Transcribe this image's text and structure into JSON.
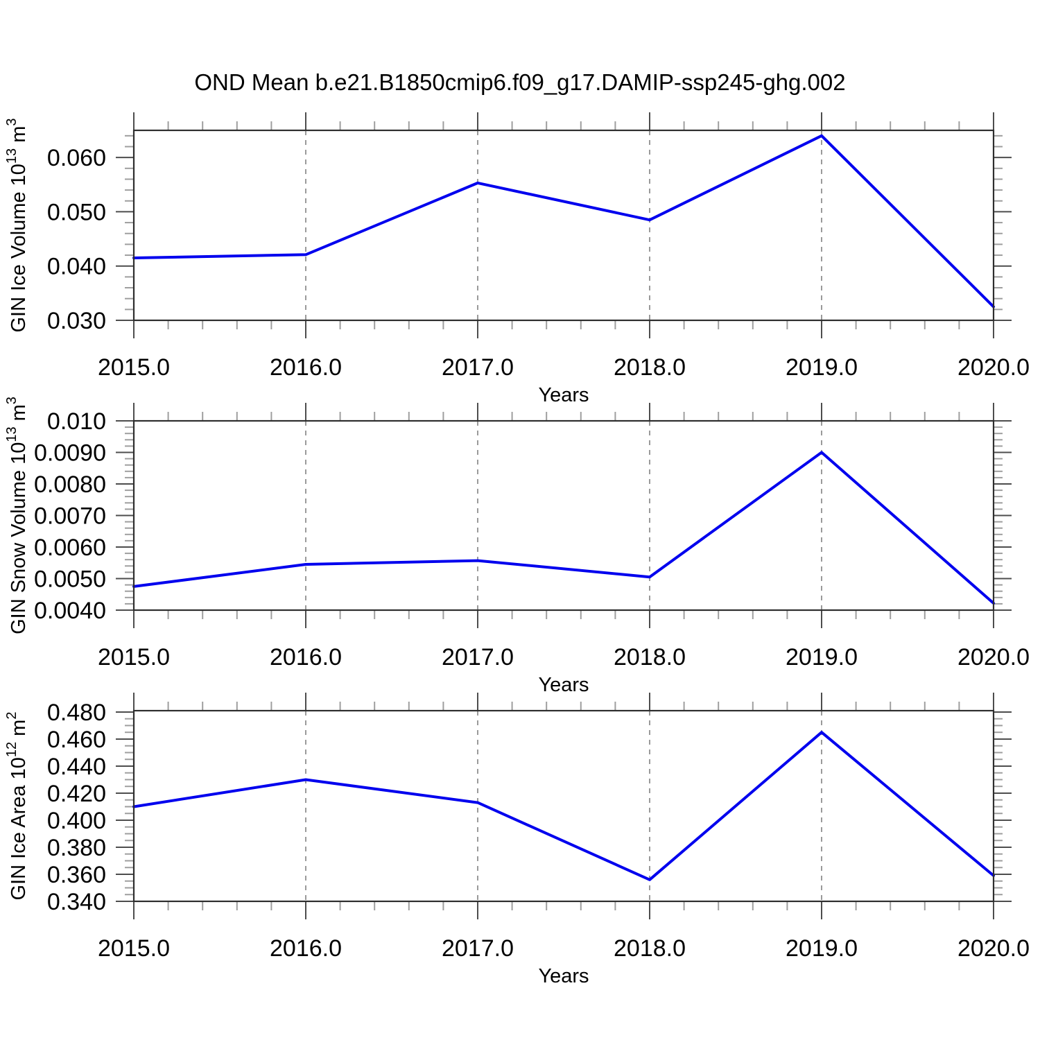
{
  "title": "OND Mean b.e21.B1850cmip6.f09_g17.DAMIP-ssp245-ghg.002",
  "colors": {
    "line": "#0000ee",
    "frame": "#2e2e2e",
    "major_tick": "#4d4d4d",
    "minor_tick": "#9e9e9e",
    "grid": "#9a9a9a",
    "text": "#000000",
    "background": "#ffffff"
  },
  "chart_data": [
    {
      "type": "line",
      "panel": "ice-volume",
      "x": [
        2015,
        2016,
        2017,
        2018,
        2019,
        2020
      ],
      "values": [
        0.0415,
        0.0421,
        0.0553,
        0.0485,
        0.064,
        0.0325
      ],
      "xlabel": "Years",
      "ylabel": "GIN Ice Volume 10^13 m^3",
      "ylabel_parts": [
        {
          "text": "GIN Ice Volume 10"
        },
        {
          "text": "13",
          "sup": true
        },
        {
          "text": " m"
        },
        {
          "text": "3",
          "sup": true
        }
      ],
      "xlim": [
        2015,
        2020
      ],
      "ylim": [
        0.03,
        0.065
      ],
      "yticks": [
        {
          "v": 0.06,
          "label": "0.060"
        },
        {
          "v": 0.05,
          "label": "0.050"
        },
        {
          "v": 0.04,
          "label": "0.040"
        },
        {
          "v": 0.03,
          "label": "0.030"
        }
      ],
      "y_minor_step": 0.002,
      "xticks": [
        {
          "v": 2015,
          "label": "2015.0"
        },
        {
          "v": 2016,
          "label": "2016.0"
        },
        {
          "v": 2017,
          "label": "2017.0"
        },
        {
          "v": 2018,
          "label": "2018.0"
        },
        {
          "v": 2019,
          "label": "2019.0"
        },
        {
          "v": 2020,
          "label": "2020.0"
        }
      ],
      "x_minor_step": 0.2,
      "grid_x": [
        2016,
        2017,
        2018,
        2019
      ]
    },
    {
      "type": "line",
      "panel": "snow-volume",
      "x": [
        2015,
        2016,
        2017,
        2018,
        2019,
        2020
      ],
      "values": [
        0.00475,
        0.00545,
        0.00557,
        0.00505,
        0.009,
        0.00422
      ],
      "xlabel": "Years",
      "ylabel": "GIN Snow Volume 10^13 m^3",
      "ylabel_parts": [
        {
          "text": "GIN Snow Volume 10"
        },
        {
          "text": "13",
          "sup": true
        },
        {
          "text": " m"
        },
        {
          "text": "3",
          "sup": true
        }
      ],
      "xlim": [
        2015,
        2020
      ],
      "ylim": [
        0.004,
        0.01
      ],
      "yticks": [
        {
          "v": 0.01,
          "label": "0.010"
        },
        {
          "v": 0.009,
          "label": "0.0090"
        },
        {
          "v": 0.008,
          "label": "0.0080"
        },
        {
          "v": 0.007,
          "label": "0.0070"
        },
        {
          "v": 0.006,
          "label": "0.0060"
        },
        {
          "v": 0.005,
          "label": "0.0050"
        },
        {
          "v": 0.004,
          "label": "0.0040"
        }
      ],
      "y_minor_step": 0.0002,
      "xticks": [
        {
          "v": 2015,
          "label": "2015.0"
        },
        {
          "v": 2016,
          "label": "2016.0"
        },
        {
          "v": 2017,
          "label": "2017.0"
        },
        {
          "v": 2018,
          "label": "2018.0"
        },
        {
          "v": 2019,
          "label": "2019.0"
        },
        {
          "v": 2020,
          "label": "2020.0"
        }
      ],
      "x_minor_step": 0.2,
      "grid_x": [
        2016,
        2017,
        2018,
        2019
      ]
    },
    {
      "type": "line",
      "panel": "ice-area",
      "x": [
        2015,
        2016,
        2017,
        2018,
        2019,
        2020
      ],
      "values": [
        0.41,
        0.43,
        0.413,
        0.356,
        0.465,
        0.359
      ],
      "xlabel": "Years",
      "ylabel": "GIN Ice Area 10^12 m^2",
      "ylabel_parts": [
        {
          "text": "GIN Ice Area 10"
        },
        {
          "text": "12",
          "sup": true
        },
        {
          "text": " m"
        },
        {
          "text": "2",
          "sup": true
        }
      ],
      "xlim": [
        2015,
        2020
      ],
      "ylim": [
        0.34,
        0.481
      ],
      "yticks": [
        {
          "v": 0.48,
          "label": "0.480"
        },
        {
          "v": 0.46,
          "label": "0.460"
        },
        {
          "v": 0.44,
          "label": "0.440"
        },
        {
          "v": 0.42,
          "label": "0.420"
        },
        {
          "v": 0.4,
          "label": "0.400"
        },
        {
          "v": 0.38,
          "label": "0.380"
        },
        {
          "v": 0.36,
          "label": "0.360"
        },
        {
          "v": 0.34,
          "label": "0.340"
        }
      ],
      "y_minor_step": 0.005,
      "xticks": [
        {
          "v": 2015,
          "label": "2015.0"
        },
        {
          "v": 2016,
          "label": "2016.0"
        },
        {
          "v": 2017,
          "label": "2017.0"
        },
        {
          "v": 2018,
          "label": "2018.0"
        },
        {
          "v": 2019,
          "label": "2019.0"
        },
        {
          "v": 2020,
          "label": "2020.0"
        }
      ],
      "x_minor_step": 0.2,
      "grid_x": [
        2016,
        2017,
        2018,
        2019
      ]
    }
  ]
}
